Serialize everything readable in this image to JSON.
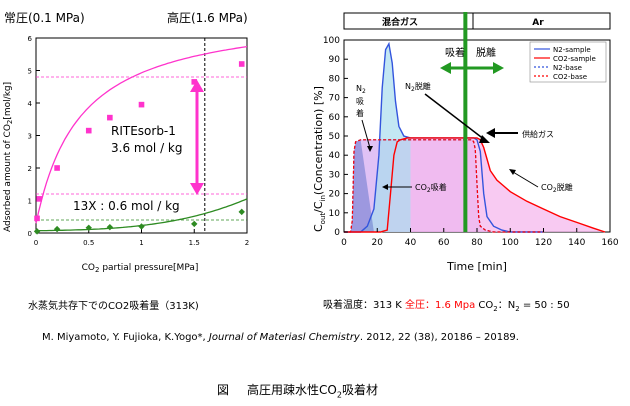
{
  "left": {
    "label_low": "常圧(0.1 MPa)",
    "label_high": "高圧(1.6 MPa)",
    "caption": "水蒸気共存下でのCO2吸着量（313K)",
    "annotation_rite_name": "RITEsorb-1",
    "annotation_rite_value": "3.6 mol / kg",
    "annotation_13x": "13X : 0.6 mol / kg"
  },
  "right": {
    "band_left": "混合ガス",
    "band_right": "Ar",
    "arrow_adsorb": "吸着",
    "arrow_desorb": "脱離",
    "ann_n2_ads_l1": "N",
    "ann_n2_ads_sub": "2",
    "ann_n2_ads_l2": "吸",
    "ann_n2_ads_l3": "着",
    "ann_n2_des": "N",
    "ann_n2_des_sub": "2",
    "ann_n2_des_rest": "脱離",
    "ann_feed": "供給ガス",
    "ann_co2_ads": "CO",
    "ann_co2_ads_sub": "2",
    "ann_co2_ads_rest": "吸着",
    "ann_co2_des": "CO",
    "ann_co2_des_sub": "2",
    "ann_co2_des_rest": "脱離",
    "ylabel": "C",
    "ylabel_sub1": "out",
    "ylabel_mid": "/C",
    "ylabel_sub2": "in",
    "ylabel_rest": "(Concentration) [%]",
    "caption_pre": "吸着温度：313 K ",
    "caption_red": "全圧：1.6 Mpa",
    "caption_post": " CO",
    "caption_sub": "2",
    "caption_post2": "：N",
    "caption_sub2": "2",
    "caption_post3": " = 50 : 50"
  },
  "reference": {
    "authors": "M. Miyamoto, Y. Fujioka, K.Yogo*,  ",
    "journal": "Journal of Materiasl Chemistry",
    "rest": ". 2012, 22 (38), 20186 – 20189."
  },
  "figure_caption": {
    "prefix": "図",
    "text_pre": "高圧用疎水性CO",
    "text_sub": "2",
    "text_post": "吸着材"
  },
  "colors": {
    "magenta": "#ff33cc",
    "green": "#2e8b22",
    "co2_red": "#ff0000",
    "n2_blue": "#3355dd",
    "divider_green": "#229922"
  },
  "chart_data": [
    {
      "type": "line",
      "xlabel": "CO2 partial pressure[MPa]",
      "ylabel": "Adsorbed amount of CO2[mol/kg]",
      "xlim": [
        0,
        2
      ],
      "ylim": [
        0,
        6
      ],
      "x_ticks": [
        "0",
        "0.5",
        "1",
        "1.5",
        "2"
      ],
      "y_ticks": [
        "0",
        "1",
        "2",
        "3",
        "4",
        "5",
        "6"
      ],
      "series": [
        {
          "name": "RITEsorb-1",
          "color": "#ff33cc",
          "x": [
            0.01,
            0.03,
            0.2,
            0.5,
            0.7,
            1.0,
            1.5,
            1.95
          ],
          "y": [
            0.45,
            1.05,
            2.0,
            3.15,
            3.55,
            3.95,
            4.65,
            5.2
          ]
        },
        {
          "name": "13X",
          "color": "#2e8b22",
          "x": [
            0.01,
            0.2,
            0.5,
            0.7,
            1.0,
            1.5,
            1.95
          ],
          "y": [
            0.05,
            0.12,
            0.16,
            0.18,
            0.2,
            0.28,
            0.65
          ]
        }
      ],
      "annotations": {
        "dashed_x": 1.6,
        "ref_low_y": 1.2,
        "ref_high_y": 4.8
      }
    },
    {
      "type": "line",
      "xlabel": "Time [min]",
      "xlim": [
        0,
        160
      ],
      "ylim": [
        0,
        100
      ],
      "x_ticks": [
        "0",
        "20",
        "40",
        "60",
        "80",
        "100",
        "120",
        "140",
        "160"
      ],
      "y_ticks": [
        "0",
        "10",
        "20",
        "30",
        "40",
        "50",
        "60",
        "70",
        "80",
        "90",
        "100"
      ],
      "switch_time": 73,
      "legend": [
        "N2-sample",
        "CO2-sample",
        "N2-base",
        "CO2-base"
      ],
      "series": [
        {
          "name": "N2-sample",
          "color": "#3355dd",
          "x": [
            0,
            6,
            10,
            14,
            18,
            21,
            23,
            25,
            27,
            29,
            31,
            33,
            36,
            40,
            50,
            60,
            72,
            78,
            80,
            82,
            84,
            86,
            90,
            95,
            100,
            110,
            120
          ],
          "y": [
            0,
            0,
            0,
            3,
            12,
            40,
            75,
            95,
            98,
            88,
            68,
            55,
            50,
            49,
            49,
            49,
            49,
            49,
            48,
            42,
            20,
            8,
            3,
            1,
            0,
            0,
            0
          ]
        },
        {
          "name": "CO2-sample",
          "color": "#ff0000",
          "x": [
            0,
            6,
            10,
            16,
            22,
            26,
            28,
            30,
            32,
            34,
            38,
            45,
            60,
            72,
            80,
            82,
            84,
            86,
            88,
            92,
            96,
            100,
            110,
            120,
            130,
            140,
            150,
            157
          ],
          "y": [
            0,
            0,
            0,
            0,
            0,
            1,
            20,
            40,
            47,
            48,
            49,
            49,
            49,
            49,
            49,
            48,
            44,
            38,
            32,
            27,
            24,
            21,
            16,
            12,
            8,
            5,
            2,
            0
          ]
        },
        {
          "name": "N2-base",
          "color": "#3355dd",
          "x": [
            0,
            4,
            5,
            6,
            7,
            10,
            20,
            40,
            60,
            72,
            77,
            78,
            79,
            80,
            81,
            82,
            85,
            90,
            100,
            120
          ],
          "y": [
            0,
            0,
            6,
            42,
            47,
            48,
            48,
            48,
            48,
            48,
            48,
            47,
            43,
            25,
            8,
            3,
            1,
            0,
            0,
            0
          ]
        },
        {
          "name": "CO2-base",
          "color": "#ff0000",
          "x": [
            0,
            4,
            5,
            6,
            7,
            10,
            20,
            40,
            60,
            72,
            77,
            78,
            79,
            80,
            81,
            82,
            85,
            90,
            100,
            120
          ],
          "y": [
            0,
            0,
            6,
            42,
            47,
            48,
            48,
            48,
            48,
            48,
            48,
            47,
            43,
            25,
            8,
            3,
            1,
            0,
            0,
            0
          ]
        }
      ]
    }
  ]
}
